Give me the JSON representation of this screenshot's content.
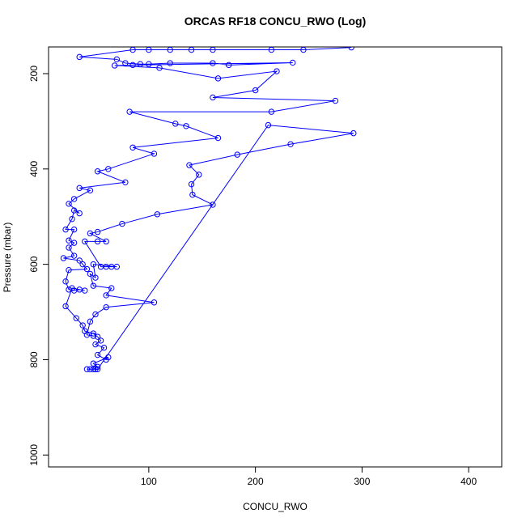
{
  "chart_data": {
    "type": "line",
    "title": "ORCAS RF18 CONCU_RWO (Log)",
    "x_label": "CONCU_RWO",
    "y_label": "Pressure (mbar)",
    "color": "#0000ff",
    "x": [
      290,
      245,
      215,
      160,
      140,
      120,
      100,
      85,
      35,
      70,
      78,
      92,
      100,
      120,
      160,
      175,
      235,
      85,
      68,
      110,
      165,
      220,
      200,
      160,
      275,
      215,
      82,
      125,
      135,
      165,
      85,
      105,
      62,
      52,
      78,
      35,
      45,
      30,
      25,
      35,
      30,
      28,
      22,
      30,
      25,
      30,
      25,
      30,
      20,
      35,
      38,
      42,
      25,
      22,
      25,
      30,
      35,
      40,
      28,
      22,
      32,
      38,
      40,
      48,
      52,
      55,
      50,
      58,
      52,
      60,
      62,
      48,
      52,
      48,
      42,
      45,
      50,
      52,
      212,
      292,
      233,
      183,
      138,
      147,
      140,
      141,
      160,
      108,
      75,
      52,
      45,
      60,
      52,
      40,
      55,
      60,
      65,
      70,
      48,
      50,
      45,
      48,
      65,
      60,
      105,
      60,
      50,
      45,
      42,
      48
    ],
    "values": [
      145,
      150,
      150,
      150,
      150,
      150,
      150,
      150,
      165,
      170,
      178,
      180,
      180,
      178,
      178,
      182,
      177,
      182,
      183,
      188,
      210,
      195,
      235,
      250,
      257,
      280,
      280,
      305,
      310,
      335,
      355,
      368,
      400,
      405,
      428,
      440,
      445,
      463,
      473,
      493,
      487,
      505,
      527,
      527,
      550,
      555,
      565,
      582,
      587,
      592,
      600,
      610,
      612,
      636,
      653,
      655,
      653,
      655,
      650,
      688,
      713,
      728,
      740,
      745,
      752,
      760,
      768,
      775,
      790,
      800,
      795,
      808,
      815,
      820,
      820,
      820,
      820,
      820,
      308,
      325,
      348,
      370,
      392,
      412,
      432,
      454,
      475,
      495,
      515,
      532,
      535,
      552,
      552,
      552,
      605,
      605,
      605,
      605,
      600,
      628,
      620,
      645,
      650,
      665,
      680,
      690,
      705,
      720,
      748,
      750
    ],
    "xlim": [
      6,
      431
    ],
    "ylim": [
      1025,
      144
    ],
    "xticks": [
      100,
      200,
      300,
      400
    ],
    "yticks": [
      200,
      400,
      600,
      800,
      1000
    ]
  }
}
